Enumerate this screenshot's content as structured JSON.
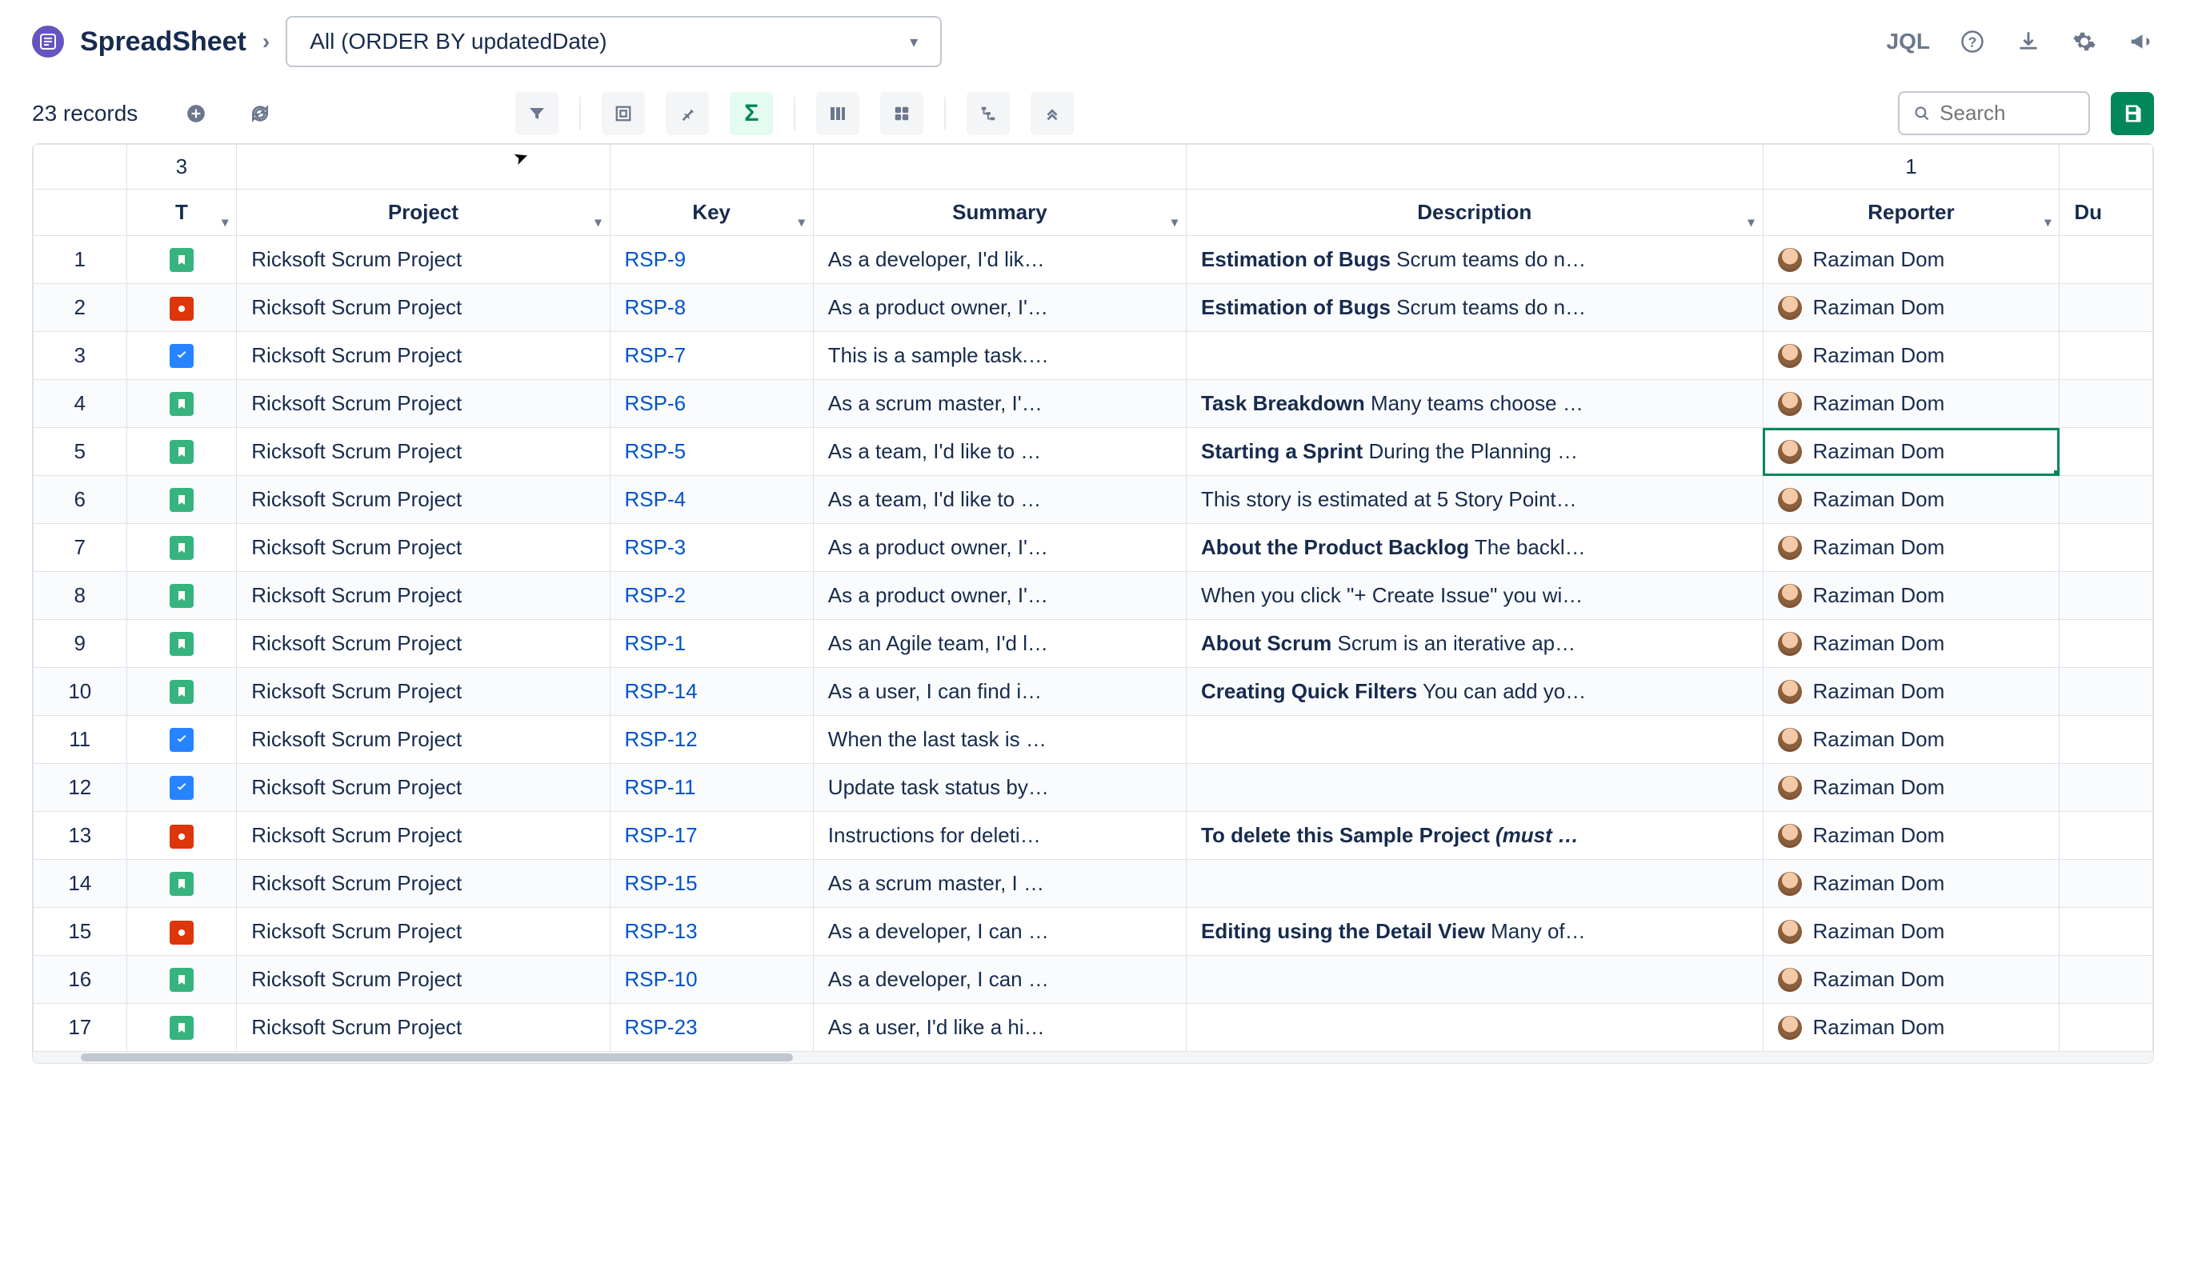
{
  "header": {
    "app_title": "SpreadSheet",
    "filter_label": "All (ORDER BY updatedDate)",
    "jql_label": "JQL"
  },
  "toolbar": {
    "record_count": "23 records",
    "search_placeholder": "Search",
    "sigma_label": "Σ"
  },
  "table": {
    "group_headers": {
      "type_group": "3",
      "reporter_group": "1"
    },
    "columns": {
      "type": "T",
      "project": "Project",
      "key": "Key",
      "summary": "Summary",
      "description": "Description",
      "reporter": "Reporter",
      "due": "Du"
    },
    "rows": [
      {
        "n": "1",
        "type": "story",
        "project": "Ricksoft Scrum Project",
        "key": "RSP-9",
        "summary": "As a developer, I'd lik…",
        "desc_bold": "Estimation of Bugs",
        "desc_rest": " Scrum teams do n…",
        "reporter": "Raziman Dom"
      },
      {
        "n": "2",
        "type": "bug",
        "project": "Ricksoft Scrum Project",
        "key": "RSP-8",
        "summary": "As a product owner, I'…",
        "desc_bold": "Estimation of Bugs",
        "desc_rest": " Scrum teams do n…",
        "reporter": "Raziman Dom"
      },
      {
        "n": "3",
        "type": "task",
        "project": "Ricksoft Scrum Project",
        "key": "RSP-7",
        "summary": "This is a sample task.…",
        "desc_bold": "",
        "desc_rest": "",
        "reporter": "Raziman Dom"
      },
      {
        "n": "4",
        "type": "story",
        "project": "Ricksoft Scrum Project",
        "key": "RSP-6",
        "summary": "As a scrum master, I'…",
        "desc_bold": "Task Breakdown",
        "desc_rest": " Many teams choose …",
        "reporter": "Raziman Dom"
      },
      {
        "n": "5",
        "type": "story",
        "project": "Ricksoft Scrum Project",
        "key": "RSP-5",
        "summary": "As a team, I'd like to …",
        "desc_bold": "Starting a Sprint",
        "desc_rest": " During the Planning …",
        "reporter": "Raziman Dom",
        "selected": true
      },
      {
        "n": "6",
        "type": "story",
        "project": "Ricksoft Scrum Project",
        "key": "RSP-4",
        "summary": "As a team, I'd like to …",
        "desc_bold": "",
        "desc_rest": "This story is estimated at 5 Story Point…",
        "reporter": "Raziman Dom"
      },
      {
        "n": "7",
        "type": "story",
        "project": "Ricksoft Scrum Project",
        "key": "RSP-3",
        "summary": "As a product owner, I'…",
        "desc_bold": "About the Product Backlog",
        "desc_rest": " The backl…",
        "reporter": "Raziman Dom"
      },
      {
        "n": "8",
        "type": "story",
        "project": "Ricksoft Scrum Project",
        "key": "RSP-2",
        "summary": "As a product owner, I'…",
        "desc_bold": "",
        "desc_rest": "When you click \"+ Create Issue\" you wi…",
        "reporter": "Raziman Dom"
      },
      {
        "n": "9",
        "type": "story",
        "project": "Ricksoft Scrum Project",
        "key": "RSP-1",
        "summary": "As an Agile team, I'd l…",
        "desc_bold": "About Scrum",
        "desc_rest": " Scrum is an iterative ap…",
        "reporter": "Raziman Dom"
      },
      {
        "n": "10",
        "type": "story",
        "project": "Ricksoft Scrum Project",
        "key": "RSP-14",
        "summary": "As a user, I can find i…",
        "desc_bold": "Creating Quick Filters",
        "desc_rest": " You can add yo…",
        "reporter": "Raziman Dom"
      },
      {
        "n": "11",
        "type": "task",
        "project": "Ricksoft Scrum Project",
        "key": "RSP-12",
        "summary": "When the last task is …",
        "desc_bold": "",
        "desc_rest": "",
        "reporter": "Raziman Dom"
      },
      {
        "n": "12",
        "type": "task",
        "project": "Ricksoft Scrum Project",
        "key": "RSP-11",
        "summary": "Update task status by…",
        "desc_bold": "",
        "desc_rest": "",
        "reporter": "Raziman Dom"
      },
      {
        "n": "13",
        "type": "bug",
        "project": "Ricksoft Scrum Project",
        "key": "RSP-17",
        "summary": "Instructions for deleti…",
        "desc_bold": "To delete this Sample Project",
        "desc_rest": "",
        "desc_italic": " (must …",
        "reporter": "Raziman Dom"
      },
      {
        "n": "14",
        "type": "story",
        "project": "Ricksoft Scrum Project",
        "key": "RSP-15",
        "summary": "As a scrum master, I …",
        "desc_bold": "",
        "desc_rest": "",
        "reporter": "Raziman Dom"
      },
      {
        "n": "15",
        "type": "bug",
        "project": "Ricksoft Scrum Project",
        "key": "RSP-13",
        "summary": "As a developer, I can …",
        "desc_bold": "Editing using the Detail View",
        "desc_rest": " Many of…",
        "reporter": "Raziman Dom"
      },
      {
        "n": "16",
        "type": "story",
        "project": "Ricksoft Scrum Project",
        "key": "RSP-10",
        "summary": "As a developer, I can …",
        "desc_bold": "",
        "desc_rest": "",
        "reporter": "Raziman Dom"
      },
      {
        "n": "17",
        "type": "story",
        "project": "Ricksoft Scrum Project",
        "key": "RSP-23",
        "summary": "As a user, I'd like a hi…",
        "desc_bold": "",
        "desc_rest": "",
        "reporter": "Raziman Dom"
      }
    ]
  },
  "colors": {
    "story": "#36b37e",
    "bug": "#de350b",
    "task": "#2684ff",
    "link": "#0052cc",
    "save": "#00875a",
    "border": "#dfe1e6"
  }
}
